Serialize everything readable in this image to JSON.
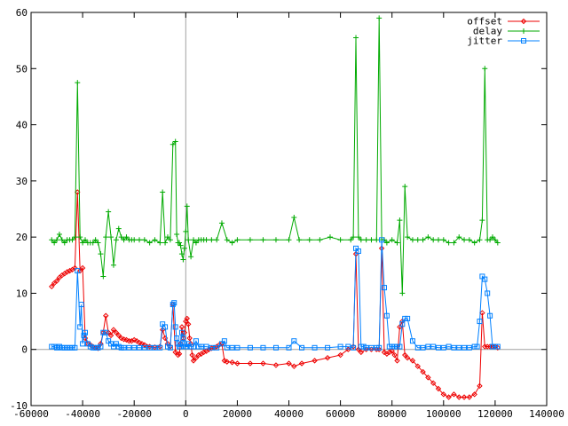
{
  "chart_data": {
    "type": "line",
    "title": "",
    "xlabel": "",
    "ylabel": "",
    "xlim": [
      -60000,
      140000
    ],
    "ylim": [
      -10,
      60
    ],
    "x_ticks": [
      -60000,
      -40000,
      -20000,
      0,
      20000,
      40000,
      60000,
      80000,
      100000,
      120000,
      140000
    ],
    "y_ticks": [
      -10,
      0,
      10,
      20,
      30,
      40,
      50,
      60
    ],
    "grid": false,
    "zero_axes": true,
    "legend_position": "top-right",
    "series": [
      {
        "name": "offset",
        "color": "#ee0000",
        "marker": "diamond",
        "x": [
          -52000,
          -51000,
          -50000,
          -49000,
          -48000,
          -47000,
          -46000,
          -45000,
          -44000,
          -43000,
          -42000,
          -41000,
          -40000,
          -39000,
          -38000,
          -37000,
          -36000,
          -35000,
          -34000,
          -33000,
          -32000,
          -31000,
          -30000,
          -29000,
          -28000,
          -27000,
          -26000,
          -25000,
          -24000,
          -23000,
          -22000,
          -21000,
          -20000,
          -19000,
          -18000,
          -17000,
          -16000,
          -15000,
          -14000,
          -12000,
          -10000,
          -9000,
          -8000,
          -7000,
          -6000,
          -5000,
          -4000,
          -3000,
          -2500,
          -2000,
          -1500,
          -1000,
          -500,
          0,
          500,
          1000,
          1500,
          2000,
          2500,
          3000,
          4000,
          5000,
          6000,
          7000,
          8000,
          9000,
          10000,
          11000,
          12000,
          13000,
          14000,
          15000,
          16000,
          18000,
          20000,
          25000,
          30000,
          35000,
          40000,
          42000,
          45000,
          50000,
          55000,
          60000,
          63000,
          65000,
          66000,
          67000,
          68000,
          70000,
          72000,
          74000,
          75000,
          76000,
          77000,
          78000,
          79000,
          80000,
          81000,
          82000,
          83000,
          84000,
          85000,
          86000,
          88000,
          90000,
          92000,
          94000,
          96000,
          98000,
          100000,
          102000,
          104000,
          106000,
          108000,
          110000,
          112000,
          114000,
          115000,
          116000,
          117000,
          118000,
          119000,
          120000,
          121000
        ],
        "y": [
          11.2,
          11.8,
          12.2,
          12.8,
          13.2,
          13.5,
          13.8,
          14.0,
          14.2,
          14.5,
          28.0,
          14.0,
          14.5,
          2.0,
          1.0,
          0.8,
          0.5,
          0.3,
          0.2,
          1.0,
          3.0,
          6.0,
          3.0,
          2.5,
          3.5,
          3.0,
          2.5,
          2.0,
          1.8,
          1.7,
          1.5,
          1.5,
          1.7,
          1.5,
          1.2,
          1.0,
          0.8,
          0.5,
          0.5,
          0.4,
          0.5,
          3.5,
          2.0,
          1.0,
          0.5,
          8.0,
          -0.5,
          -1.0,
          -0.8,
          1.0,
          4.0,
          2.0,
          3.0,
          5.0,
          5.5,
          4.5,
          2.0,
          1.0,
          -1.0,
          -2.0,
          -1.5,
          -1.0,
          -0.8,
          -0.5,
          -0.3,
          0.0,
          0.2,
          0.3,
          0.5,
          0.8,
          1.0,
          -2.0,
          -2.2,
          -2.3,
          -2.5,
          -2.5,
          -2.5,
          -2.8,
          -2.5,
          -3.0,
          -2.5,
          -2.0,
          -1.5,
          -1.0,
          0.0,
          0.5,
          17.0,
          0.0,
          -0.5,
          0.0,
          0.0,
          0.0,
          0.0,
          18.0,
          -0.5,
          -0.8,
          -0.5,
          -0.3,
          -1.0,
          -2.0,
          4.0,
          5.0,
          -1.0,
          -1.5,
          -2.0,
          -3.0,
          -4.0,
          -5.0,
          -6.0,
          -7.0,
          -8.0,
          -8.5,
          -8.0,
          -8.5,
          -8.5,
          -8.5,
          -8.0,
          -6.5,
          6.5,
          0.5,
          0.5,
          0.5,
          0.5,
          0.5,
          0.3
        ]
      },
      {
        "name": "delay",
        "color": "#00aa00",
        "marker": "plus",
        "x": [
          -52000,
          -51000,
          -50000,
          -49000,
          -48000,
          -47000,
          -46000,
          -45000,
          -44000,
          -43000,
          -42000,
          -41000,
          -40000,
          -39000,
          -38000,
          -37000,
          -36000,
          -35000,
          -34000,
          -33000,
          -32000,
          -31000,
          -30000,
          -29000,
          -28000,
          -27000,
          -26000,
          -25000,
          -24000,
          -23000,
          -22000,
          -21000,
          -20000,
          -18000,
          -16000,
          -14000,
          -12000,
          -10000,
          -9000,
          -8000,
          -7000,
          -6000,
          -5000,
          -4000,
          -3500,
          -3000,
          -2500,
          -2000,
          -1500,
          -1000,
          -500,
          0,
          500,
          1000,
          2000,
          3000,
          4000,
          5000,
          6000,
          7000,
          8000,
          10000,
          12000,
          14000,
          16000,
          18000,
          20000,
          25000,
          30000,
          35000,
          40000,
          42000,
          44000,
          48000,
          52000,
          56000,
          60000,
          64000,
          65000,
          66000,
          67000,
          68000,
          70000,
          72000,
          74000,
          75000,
          76000,
          77000,
          78000,
          80000,
          82000,
          83000,
          84000,
          85000,
          86000,
          88000,
          90000,
          92000,
          94000,
          96000,
          98000,
          100000,
          102000,
          104000,
          106000,
          108000,
          110000,
          112000,
          114000,
          115000,
          116000,
          117000,
          118000,
          119000,
          120000,
          121000
        ],
        "y": [
          19.5,
          19.0,
          19.5,
          20.5,
          19.5,
          19.0,
          19.5,
          19.5,
          19.5,
          20.0,
          47.5,
          20.0,
          19.0,
          19.5,
          19.0,
          19.0,
          19.0,
          19.5,
          19.0,
          17.0,
          13.0,
          20.0,
          24.5,
          20.0,
          15.0,
          19.5,
          21.5,
          20.0,
          19.5,
          20.0,
          19.5,
          19.5,
          19.5,
          19.5,
          19.5,
          19.0,
          19.5,
          19.0,
          28.0,
          19.0,
          20.0,
          19.5,
          36.5,
          37.0,
          20.5,
          19.0,
          19.0,
          18.5,
          17.0,
          16.0,
          18.0,
          21.0,
          25.5,
          19.5,
          16.5,
          19.5,
          19.0,
          19.5,
          19.5,
          19.5,
          19.5,
          19.5,
          19.5,
          22.5,
          19.5,
          19.0,
          19.5,
          19.5,
          19.5,
          19.5,
          19.5,
          23.5,
          19.5,
          19.5,
          19.5,
          20.0,
          19.5,
          19.5,
          20.0,
          55.5,
          20.0,
          19.5,
          19.5,
          19.5,
          19.5,
          59.0,
          19.5,
          19.5,
          19.0,
          19.5,
          19.0,
          23.0,
          10.0,
          29.0,
          20.0,
          19.5,
          19.5,
          19.5,
          20.0,
          19.5,
          19.5,
          19.5,
          19.0,
          19.0,
          20.0,
          19.5,
          19.5,
          19.0,
          19.5,
          23.0,
          50.0,
          19.5,
          19.5,
          20.0,
          19.5,
          19.0
        ]
      },
      {
        "name": "jitter",
        "color": "#0080ff",
        "marker": "square",
        "x": [
          -52000,
          -51000,
          -50000,
          -49000,
          -48000,
          -47000,
          -46000,
          -45000,
          -44000,
          -43000,
          -42000,
          -41000,
          -40500,
          -40000,
          -39500,
          -39000,
          -38000,
          -37000,
          -36000,
          -35000,
          -34000,
          -33000,
          -32000,
          -31000,
          -30000,
          -29000,
          -28000,
          -27000,
          -26000,
          -25000,
          -24000,
          -22000,
          -20000,
          -18000,
          -16000,
          -14000,
          -12000,
          -10000,
          -9000,
          -8000,
          -7000,
          -6000,
          -5000,
          -4500,
          -4000,
          -3500,
          -3000,
          -2500,
          -2000,
          -1500,
          -1000,
          -500,
          0,
          500,
          1000,
          2000,
          3000,
          4000,
          5000,
          6000,
          8000,
          10000,
          12000,
          14000,
          15000,
          16000,
          18000,
          20000,
          25000,
          30000,
          35000,
          40000,
          42000,
          45000,
          50000,
          55000,
          60000,
          63000,
          65000,
          66000,
          67000,
          68000,
          69000,
          70000,
          72000,
          74000,
          75000,
          76000,
          77000,
          78000,
          79000,
          80000,
          81000,
          82000,
          83000,
          84000,
          85000,
          86000,
          88000,
          90000,
          92000,
          94000,
          96000,
          98000,
          100000,
          102000,
          104000,
          106000,
          108000,
          110000,
          112000,
          113000,
          114000,
          115000,
          116000,
          117000,
          118000,
          119000,
          120000,
          121000
        ],
        "y": [
          0.5,
          0.5,
          0.3,
          0.5,
          0.3,
          0.3,
          0.3,
          0.3,
          0.3,
          0.3,
          14.0,
          4.0,
          8.0,
          1.0,
          2.5,
          3.0,
          1.0,
          0.5,
          0.3,
          0.3,
          0.3,
          0.5,
          3.0,
          3.0,
          1.5,
          1.0,
          0.5,
          1.0,
          0.5,
          0.3,
          0.3,
          0.3,
          0.3,
          0.3,
          0.3,
          0.3,
          0.3,
          0.3,
          4.5,
          4.0,
          0.5,
          0.3,
          8.0,
          8.3,
          4.0,
          2.0,
          1.0,
          0.5,
          0.5,
          3.0,
          2.0,
          1.0,
          0.5,
          0.5,
          1.0,
          0.5,
          0.5,
          1.5,
          0.5,
          0.5,
          0.5,
          0.3,
          0.3,
          1.0,
          1.5,
          0.3,
          0.3,
          0.3,
          0.3,
          0.3,
          0.3,
          0.3,
          1.5,
          0.3,
          0.3,
          0.3,
          0.5,
          0.5,
          0.3,
          18.0,
          17.5,
          0.5,
          0.5,
          0.3,
          0.3,
          0.3,
          0.3,
          19.5,
          11.0,
          6.0,
          0.5,
          0.5,
          0.5,
          0.5,
          0.5,
          4.5,
          5.5,
          5.5,
          1.5,
          0.3,
          0.3,
          0.5,
          0.5,
          0.3,
          0.3,
          0.5,
          0.3,
          0.3,
          0.3,
          0.3,
          0.5,
          0.5,
          5.0,
          13.0,
          12.5,
          10.0,
          6.0,
          0.5,
          0.5,
          0.5
        ]
      }
    ]
  }
}
